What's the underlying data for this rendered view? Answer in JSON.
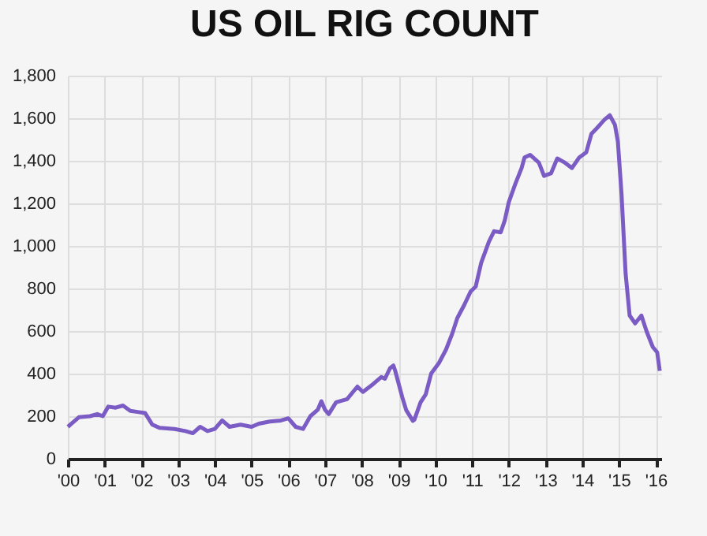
{
  "chart_data": {
    "type": "line",
    "title": "US OIL RIG COUNT",
    "x": [
      2000.0,
      2000.1,
      2000.3,
      2000.6,
      2000.8,
      2000.95,
      2001.1,
      2001.3,
      2001.5,
      2001.7,
      2001.9,
      2002.1,
      2002.3,
      2002.5,
      2002.9,
      2003.2,
      2003.4,
      2003.6,
      2003.8,
      2004.0,
      2004.2,
      2004.4,
      2004.7,
      2005.0,
      2005.2,
      2005.5,
      2005.8,
      2006.0,
      2006.2,
      2006.4,
      2006.6,
      2006.8,
      2006.9,
      2007.0,
      2007.1,
      2007.3,
      2007.6,
      2007.88,
      2008.03,
      2008.31,
      2008.53,
      2008.63,
      2008.77,
      2008.86,
      2008.91,
      2009.1,
      2009.21,
      2009.39,
      2009.43,
      2009.6,
      2009.74,
      2009.89,
      2010.1,
      2010.29,
      2010.46,
      2010.6,
      2010.79,
      2010.96,
      2011.1,
      2011.25,
      2011.46,
      2011.6,
      2011.78,
      2011.89,
      2012.0,
      2012.18,
      2012.35,
      2012.43,
      2012.58,
      2012.82,
      2012.96,
      2013.15,
      2013.32,
      2013.53,
      2013.72,
      2013.92,
      2014.11,
      2014.25,
      2014.39,
      2014.61,
      2014.75,
      2014.89,
      2014.97,
      2015.07,
      2015.18,
      2015.29,
      2015.44,
      2015.61,
      2015.75,
      2015.92,
      2016.04,
      2016.11
    ],
    "series": [
      {
        "color": "#7b5cc4",
        "values": [
          150,
          165,
          195,
          200,
          210,
          200,
          245,
          240,
          250,
          225,
          220,
          215,
          160,
          145,
          140,
          130,
          120,
          150,
          130,
          140,
          180,
          150,
          160,
          150,
          165,
          175,
          180,
          190,
          150,
          140,
          200,
          230,
          270,
          230,
          210,
          265,
          280,
          339,
          314,
          351,
          384,
          376,
          426,
          438,
          413,
          290,
          228,
          178,
          183,
          265,
          302,
          401,
          450,
          512,
          587,
          661,
          723,
          785,
          809,
          921,
          1020,
          1069,
          1064,
          1119,
          1205,
          1292,
          1366,
          1416,
          1428,
          1391,
          1329,
          1341,
          1411,
          1391,
          1366,
          1416,
          1440,
          1527,
          1552,
          1594,
          1614,
          1569,
          1490,
          1242,
          871,
          673,
          636,
          673,
          599,
          525,
          500,
          413
        ]
      }
    ],
    "xlim": [
      2000,
      2016.15
    ],
    "xticks": [
      {
        "value": 2000,
        "label": "'00"
      },
      {
        "value": 2001,
        "label": "'01"
      },
      {
        "value": 2002,
        "label": "'02"
      },
      {
        "value": 2003,
        "label": "'03"
      },
      {
        "value": 2004,
        "label": "'04"
      },
      {
        "value": 2005,
        "label": "'05"
      },
      {
        "value": 2006,
        "label": "'06"
      },
      {
        "value": 2007,
        "label": "'07"
      },
      {
        "value": 2008,
        "label": "'08"
      },
      {
        "value": 2009,
        "label": "'09"
      },
      {
        "value": 2010,
        "label": "'10"
      },
      {
        "value": 2011,
        "label": "'11"
      },
      {
        "value": 2012,
        "label": "'12"
      },
      {
        "value": 2013,
        "label": "'13"
      },
      {
        "value": 2014,
        "label": "'14"
      },
      {
        "value": 2015,
        "label": "'15"
      },
      {
        "value": 2016,
        "label": "'16"
      }
    ],
    "ylim": [
      0,
      1800
    ],
    "yticks": [
      0,
      {
        "value": 200,
        "label": "200"
      },
      {
        "value": 400,
        "label": "400"
      },
      {
        "value": 600,
        "label": "600"
      },
      {
        "value": 800,
        "label": "800"
      },
      {
        "value": 1000,
        "label": "1,000"
      },
      {
        "value": 1200,
        "label": "1,200"
      },
      {
        "value": 1400,
        "label": "1,400"
      },
      {
        "value": 1600,
        "label": "1,600"
      },
      {
        "value": 1800,
        "label": "1,800"
      }
    ],
    "grid": true,
    "marker": "none",
    "line_style": "solid"
  }
}
